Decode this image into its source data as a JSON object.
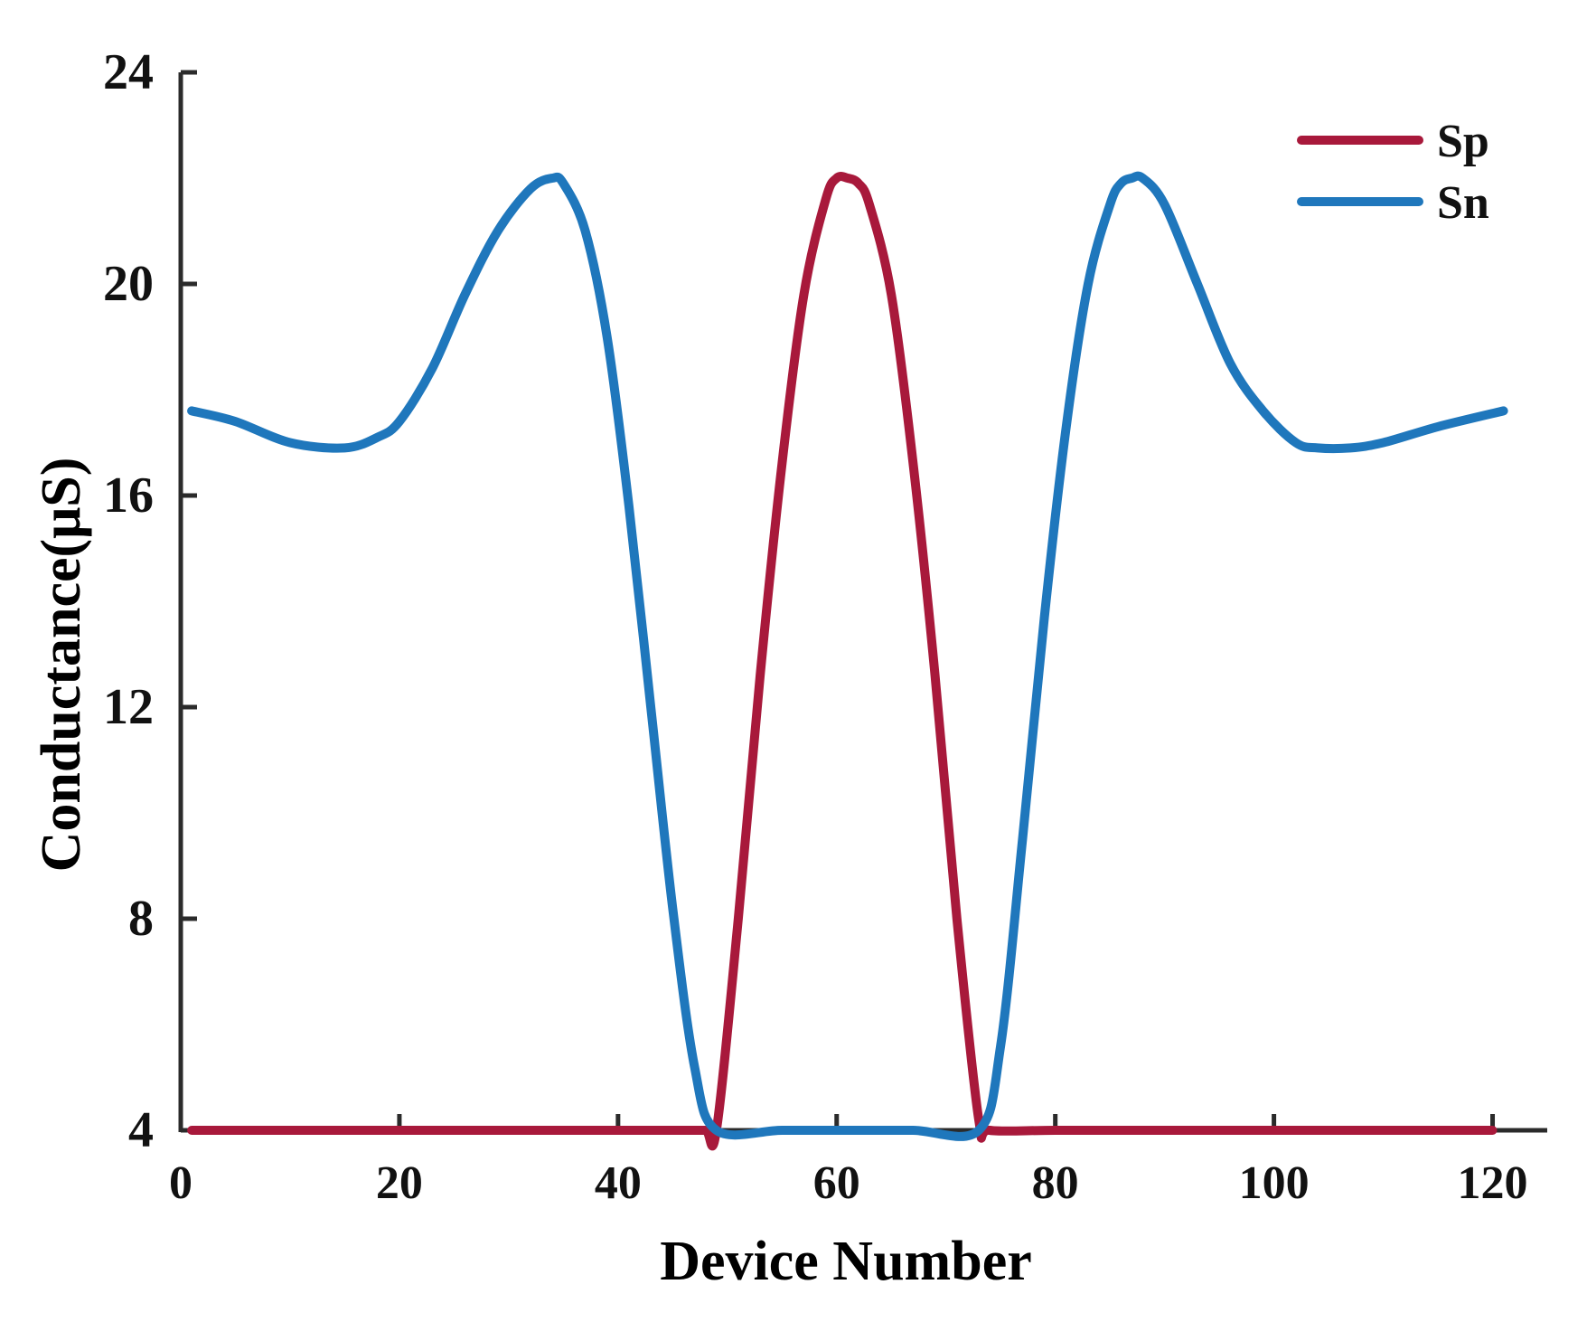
{
  "chart_data": {
    "type": "line",
    "xlabel": "Device Number",
    "ylabel": "Conductance(μS)",
    "xlim": [
      0,
      125
    ],
    "ylim": [
      4,
      24
    ],
    "xticks": [
      0,
      20,
      40,
      60,
      80,
      100,
      120
    ],
    "yticks": [
      4,
      8,
      12,
      16,
      20,
      24
    ],
    "grid": false,
    "legend_position": "top-right",
    "series": [
      {
        "name": "Sp",
        "color": "#A8193B",
        "x": [
          1,
          10,
          20,
          30,
          40,
          46,
          48,
          49,
          51,
          53,
          55,
          57,
          59,
          60,
          61,
          62,
          63,
          65,
          67,
          69,
          71,
          73,
          74,
          80,
          90,
          100,
          110,
          120
        ],
        "y": [
          4.0,
          4.0,
          4.0,
          4.0,
          4.0,
          4.0,
          4.0,
          4.0,
          8.0,
          12.6,
          16.6,
          19.8,
          21.6,
          22.0,
          22.0,
          21.9,
          21.5,
          19.8,
          16.6,
          12.6,
          8.0,
          4.2,
          4.0,
          4.0,
          4.0,
          4.0,
          4.0,
          4.0
        ]
      },
      {
        "name": "Sn",
        "color": "#1F77BC",
        "x": [
          1,
          5,
          10,
          15,
          18,
          20,
          23,
          26,
          29,
          32,
          34,
          35,
          37,
          39,
          41,
          43,
          45,
          47,
          49,
          55,
          61,
          67,
          73,
          75,
          77,
          79,
          81,
          83,
          85,
          86,
          87,
          88,
          90,
          93,
          96,
          99,
          102,
          104,
          107,
          110,
          115,
          121
        ],
        "y": [
          17.6,
          17.4,
          17.0,
          16.9,
          17.1,
          17.4,
          18.4,
          19.8,
          21.0,
          21.8,
          22.0,
          21.9,
          21.0,
          19.0,
          15.8,
          12.0,
          8.2,
          5.2,
          4.0,
          4.0,
          4.0,
          4.0,
          4.0,
          5.6,
          9.5,
          13.7,
          17.3,
          20.0,
          21.5,
          21.9,
          22.0,
          22.0,
          21.5,
          20.0,
          18.5,
          17.6,
          17.0,
          16.9,
          16.9,
          17.0,
          17.3,
          17.6
        ]
      }
    ]
  }
}
